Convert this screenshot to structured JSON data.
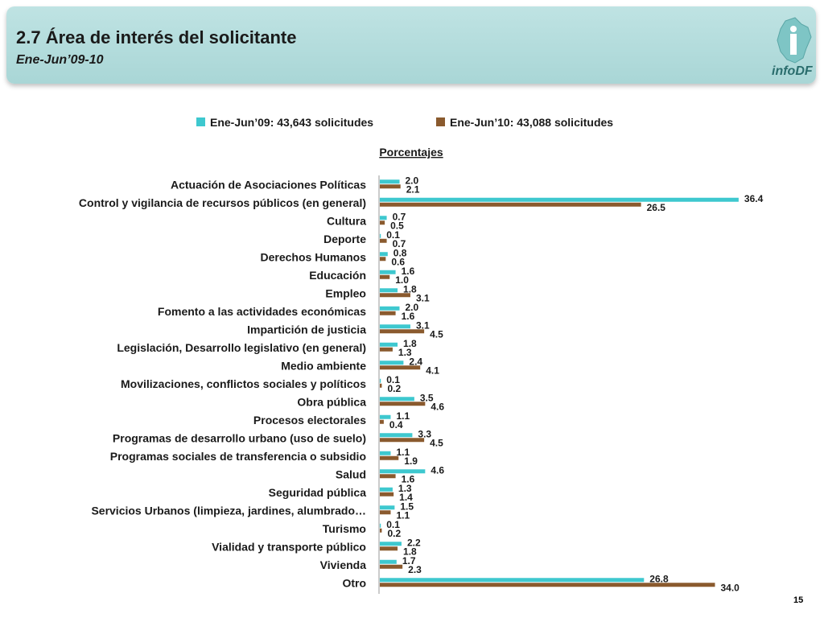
{
  "header": {
    "title": "2.7 Área de interés del solicitante",
    "subtitle": "Ene-Jun’09-10",
    "logo_text": "infoDF"
  },
  "page_number": "15",
  "colors": {
    "series1": "#3ec8cf",
    "series2": "#8a5a2e",
    "header_bg": "#b4dcdc"
  },
  "chart_data": {
    "type": "bar",
    "orientation": "horizontal",
    "unit_label": "Porcentajes",
    "legend_position": "top",
    "grid": false,
    "categories": [
      "Actuación de Asociaciones Políticas",
      "Control y vigilancia de recursos públicos (en general)",
      "Cultura",
      "Deporte",
      "Derechos Humanos",
      "Educación",
      "Empleo",
      "Fomento a las actividades económicas",
      "Impartición de justicia",
      "Legislación, Desarrollo legislativo (en general)",
      "Medio ambiente",
      "Movilizaciones, conflictos sociales y políticos",
      "Obra pública",
      "Procesos electorales",
      "Programas de desarrollo urbano (uso de suelo)",
      "Programas sociales de transferencia o subsidio",
      "Salud",
      "Seguridad pública",
      "Servicios Urbanos (limpieza, jardines, alumbrado…",
      "Turismo",
      "Vialidad y transporte público",
      "Vivienda",
      "Otro"
    ],
    "series": [
      {
        "name": "Ene-Jun’09: 43,643 solicitudes",
        "values": [
          2.0,
          36.4,
          0.7,
          0.1,
          0.8,
          1.6,
          1.8,
          2.0,
          3.1,
          1.8,
          2.4,
          0.1,
          3.5,
          1.1,
          3.3,
          1.1,
          4.6,
          1.3,
          1.5,
          0.1,
          2.2,
          1.7,
          26.8
        ]
      },
      {
        "name": "Ene-Jun’10: 43,088 solicitudes",
        "values": [
          2.1,
          26.5,
          0.5,
          0.7,
          0.6,
          1.0,
          3.1,
          1.6,
          4.5,
          1.3,
          4.1,
          0.2,
          4.6,
          0.4,
          4.5,
          1.9,
          1.6,
          1.4,
          1.1,
          0.2,
          1.8,
          2.3,
          34.0
        ]
      }
    ],
    "xlim": [
      0,
      40
    ]
  }
}
